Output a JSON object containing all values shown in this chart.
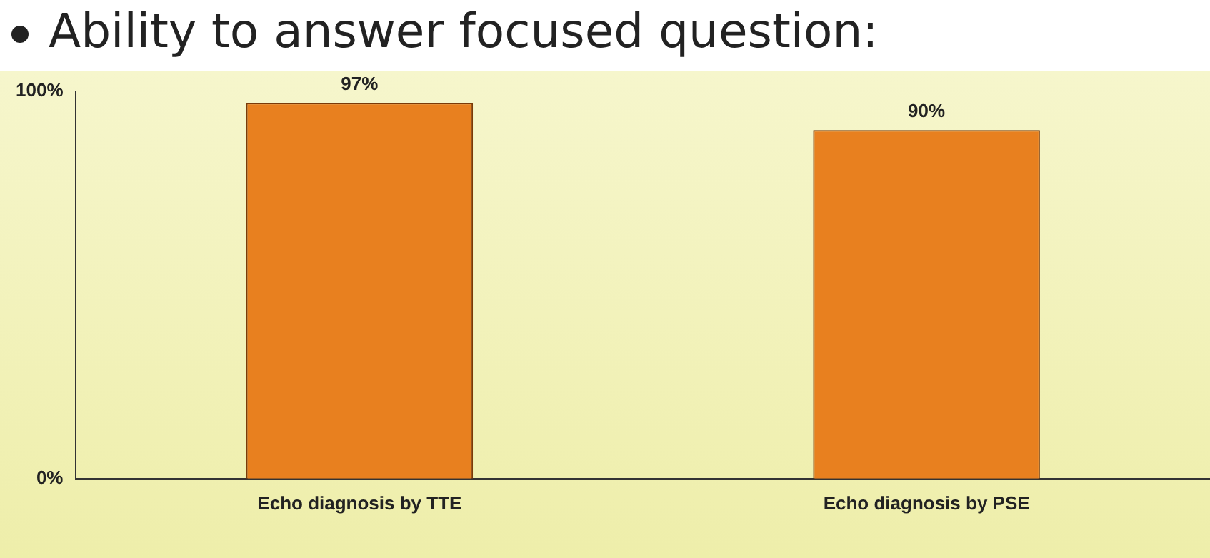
{
  "chart_data": {
    "type": "bar",
    "title": "Ability to answer focused question:",
    "categories": [
      "Echo diagnosis by TTE",
      "Echo diagnosis by PSE"
    ],
    "values": [
      97,
      90
    ],
    "value_labels": [
      "97%",
      "90%"
    ],
    "color": "#e8801f",
    "ylim": [
      0,
      100
    ],
    "yticks": [
      {
        "value": 0,
        "label": "0%"
      },
      {
        "value": 100,
        "label": "100%"
      }
    ],
    "grid": false,
    "legend": false
  }
}
